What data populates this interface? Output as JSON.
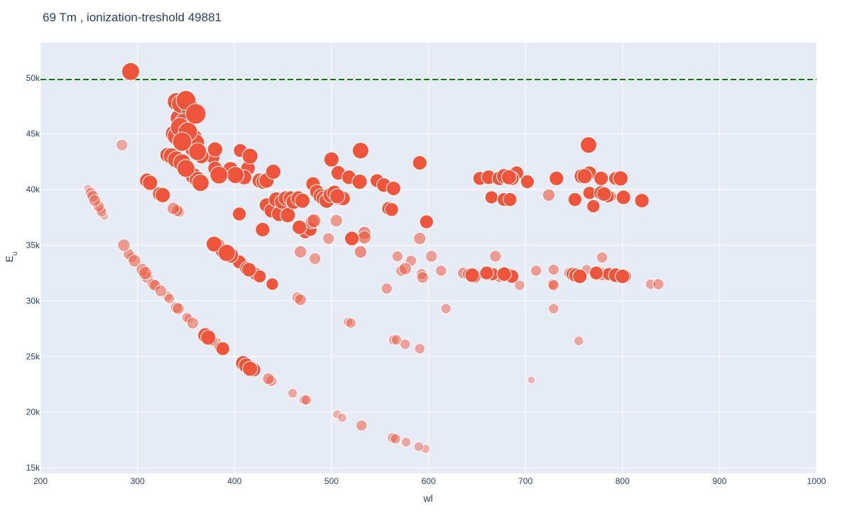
{
  "chart_data": {
    "type": "scatter",
    "title": "69 Tm , ionization-treshold 49881",
    "xlabel": "wl",
    "ylabel": "E",
    "ylabel_sub": "u",
    "xlim": [
      200,
      1000
    ],
    "ylim": [
      14500,
      53200
    ],
    "x_ticks": [
      200,
      300,
      400,
      500,
      600,
      700,
      800,
      900,
      1000
    ],
    "y_ticks": [
      15000,
      20000,
      25000,
      30000,
      35000,
      40000,
      45000,
      50000
    ],
    "x_tick_labels": [
      "200",
      "300",
      "400",
      "500",
      "600",
      "700",
      "800",
      "900",
      "1000"
    ],
    "y_tick_labels": [
      "15k",
      "20k",
      "25k",
      "30k",
      "35k",
      "40k",
      "45k",
      "50k"
    ],
    "threshold": {
      "value": 49881,
      "color": "#008000",
      "style": "dashed"
    },
    "grid": true,
    "colors": {
      "plot_bg": "#e5ecf6",
      "marker": "#ef553b",
      "text": "#2a3f5f",
      "grid": "#ffffff"
    },
    "points": [
      [
        293,
        50600,
        1.0,
        1
      ],
      [
        284,
        44000,
        0.55,
        0.6
      ],
      [
        340,
        47900,
        1.0,
        1
      ],
      [
        345,
        47700,
        1.1,
        1
      ],
      [
        350,
        48000,
        1.15,
        1
      ],
      [
        355,
        47200,
        1.1,
        1
      ],
      [
        360,
        46800,
        1.2,
        1
      ],
      [
        343,
        46400,
        1.0,
        1
      ],
      [
        348,
        46000,
        1.1,
        1
      ],
      [
        338,
        45000,
        1.0,
        1
      ],
      [
        344,
        45600,
        1.1,
        1
      ],
      [
        352,
        45200,
        1.1,
        1
      ],
      [
        358,
        44600,
        1.0,
        1
      ],
      [
        340,
        44800,
        1.0,
        1
      ],
      [
        346,
        44300,
        1.1,
        1
      ],
      [
        354,
        44500,
        1.0,
        1
      ],
      [
        360,
        44200,
        1.0,
        1
      ],
      [
        362,
        43400,
        1.0,
        1
      ],
      [
        357,
        43700,
        0.9,
        1
      ],
      [
        335,
        43000,
        0.9,
        1
      ],
      [
        340,
        42700,
        0.95,
        1
      ],
      [
        346,
        42400,
        1.0,
        1
      ],
      [
        350,
        41900,
        1.0,
        1
      ],
      [
        358,
        41200,
        0.9,
        1
      ],
      [
        362,
        40900,
        0.9,
        1
      ],
      [
        365,
        40600,
        0.95,
        1
      ],
      [
        331,
        43100,
        0.8,
        1
      ],
      [
        366,
        43000,
        0.8,
        1
      ],
      [
        310,
        40800,
        0.8,
        1
      ],
      [
        313,
        40600,
        0.8,
        1
      ],
      [
        323,
        39600,
        0.75,
        1
      ],
      [
        326,
        39500,
        0.8,
        1
      ],
      [
        337,
        38300,
        0.6,
        0.75
      ],
      [
        341,
        38100,
        0.55,
        0.75
      ],
      [
        343,
        38000,
        0.5,
        0.75
      ],
      [
        380,
        43600,
        0.8,
        1
      ],
      [
        378,
        42900,
        0.7,
        1
      ],
      [
        380,
        41900,
        0.75,
        1
      ],
      [
        384,
        41300,
        1.0,
        1
      ],
      [
        396,
        41800,
        0.85,
        1
      ],
      [
        401,
        41300,
        0.95,
        1
      ],
      [
        406,
        43500,
        0.7,
        1
      ],
      [
        410,
        41100,
        0.8,
        1
      ],
      [
        414,
        41900,
        0.75,
        1
      ],
      [
        416,
        43000,
        0.85,
        1
      ],
      [
        426,
        40800,
        0.8,
        1
      ],
      [
        430,
        40700,
        0.8,
        1
      ],
      [
        433,
        40800,
        0.8,
        1
      ],
      [
        440,
        41600,
        0.8,
        1
      ],
      [
        405,
        37800,
        0.7,
        1
      ],
      [
        429,
        36400,
        0.75,
        1
      ],
      [
        433,
        38600,
        0.75,
        1
      ],
      [
        438,
        38100,
        0.75,
        1
      ],
      [
        443,
        39100,
        0.8,
        1
      ],
      [
        446,
        37800,
        0.8,
        1
      ],
      [
        449,
        38900,
        0.8,
        1
      ],
      [
        453,
        39200,
        0.8,
        1
      ],
      [
        455,
        37700,
        0.8,
        1
      ],
      [
        458,
        39200,
        0.8,
        1
      ],
      [
        461,
        38900,
        0.8,
        1
      ],
      [
        466,
        39200,
        0.8,
        1
      ],
      [
        470,
        39000,
        0.8,
        1
      ],
      [
        467,
        36600,
        0.75,
        1
      ],
      [
        473,
        36200,
        0.7,
        1
      ],
      [
        478,
        36400,
        0.7,
        1
      ],
      [
        480,
        37100,
        0.7,
        0.85
      ],
      [
        482,
        37200,
        0.7,
        0.85
      ],
      [
        481,
        40500,
        0.75,
        1
      ],
      [
        485,
        39800,
        0.75,
        1
      ],
      [
        489,
        39400,
        0.8,
        1
      ],
      [
        492,
        39200,
        0.8,
        1
      ],
      [
        495,
        39000,
        0.8,
        1
      ],
      [
        499,
        39500,
        0.8,
        1
      ],
      [
        503,
        39700,
        0.8,
        1
      ],
      [
        506,
        39400,
        0.8,
        1
      ],
      [
        509,
        39200,
        0.75,
        1
      ],
      [
        512,
        39200,
        0.75,
        1
      ],
      [
        500,
        42700,
        0.8,
        1
      ],
      [
        507,
        41500,
        0.75,
        1
      ],
      [
        518,
        41100,
        0.75,
        1
      ],
      [
        529,
        40700,
        0.8,
        1
      ],
      [
        530,
        43500,
        0.9,
        1
      ],
      [
        547,
        40800,
        0.7,
        1
      ],
      [
        554,
        40400,
        0.75,
        1
      ],
      [
        564,
        40100,
        0.75,
        1
      ],
      [
        559,
        38300,
        0.7,
        1
      ],
      [
        562,
        38200,
        0.7,
        1
      ],
      [
        598,
        37100,
        0.7,
        1
      ],
      [
        591,
        42400,
        0.75,
        1
      ],
      [
        521,
        35600,
        0.75,
        1
      ],
      [
        534,
        36100,
        0.65,
        0.85
      ],
      [
        534,
        35700,
        0.65,
        0.85
      ],
      [
        530,
        34400,
        0.6,
        0.85
      ],
      [
        505,
        37200,
        0.6,
        0.75
      ],
      [
        468,
        34400,
        0.6,
        0.75
      ],
      [
        483,
        33800,
        0.55,
        0.7
      ],
      [
        497,
        35600,
        0.55,
        0.7
      ],
      [
        591,
        35600,
        0.6,
        0.75
      ],
      [
        603,
        34000,
        0.55,
        0.7
      ],
      [
        568,
        34000,
        0.5,
        0.7
      ],
      [
        582,
        33600,
        0.5,
        0.7
      ],
      [
        576,
        32900,
        0.6,
        0.75
      ],
      [
        572,
        32700,
        0.5,
        0.7
      ],
      [
        593,
        32400,
        0.5,
        0.7
      ],
      [
        594,
        32100,
        0.55,
        0.7
      ],
      [
        557,
        31100,
        0.5,
        0.7
      ],
      [
        613,
        32700,
        0.5,
        0.7
      ],
      [
        618,
        29300,
        0.45,
        0.65
      ],
      [
        286,
        35000,
        0.6,
        0.75
      ],
      [
        291,
        34200,
        0.5,
        0.7
      ],
      [
        294,
        33900,
        0.45,
        0.65
      ],
      [
        297,
        33600,
        0.6,
        0.75
      ],
      [
        305,
        32800,
        0.6,
        0.75
      ],
      [
        308,
        32500,
        0.65,
        0.75
      ],
      [
        310,
        32100,
        0.55,
        0.7
      ],
      [
        316,
        31500,
        0.55,
        0.7
      ],
      [
        318,
        31400,
        0.55,
        0.7
      ],
      [
        324,
        30900,
        0.55,
        0.7
      ],
      [
        331,
        30400,
        0.45,
        0.6
      ],
      [
        333,
        30200,
        0.45,
        0.6
      ],
      [
        340,
        29400,
        0.55,
        0.7
      ],
      [
        342,
        29300,
        0.55,
        0.7
      ],
      [
        351,
        28500,
        0.45,
        0.6
      ],
      [
        353,
        28400,
        0.4,
        0.6
      ],
      [
        357,
        28000,
        0.55,
        0.7
      ],
      [
        379,
        35100,
        0.85,
        1
      ],
      [
        382,
        35000,
        0.8,
        1
      ],
      [
        388,
        34500,
        0.8,
        1
      ],
      [
        392,
        34300,
        0.95,
        1
      ],
      [
        396,
        34100,
        0.85,
        1
      ],
      [
        405,
        33500,
        0.7,
        1
      ],
      [
        413,
        32900,
        0.75,
        1
      ],
      [
        415,
        32800,
        0.75,
        1
      ],
      [
        422,
        32400,
        0.65,
        1
      ],
      [
        426,
        32200,
        0.65,
        1
      ],
      [
        439,
        31500,
        0.6,
        1
      ],
      [
        370,
        26900,
        0.8,
        1
      ],
      [
        373,
        26700,
        0.8,
        1
      ],
      [
        376,
        26500,
        0.6,
        0.75
      ],
      [
        382,
        26200,
        0.5,
        0.7
      ],
      [
        386,
        25800,
        0.65,
        0.8
      ],
      [
        388,
        25700,
        0.7,
        1
      ],
      [
        409,
        24400,
        0.8,
        1
      ],
      [
        412,
        24200,
        0.8,
        1
      ],
      [
        416,
        23900,
        0.8,
        1
      ],
      [
        420,
        23800,
        0.7,
        1
      ],
      [
        435,
        23000,
        0.55,
        0.75
      ],
      [
        438,
        22800,
        0.5,
        0.7
      ],
      [
        460,
        21700,
        0.4,
        0.6
      ],
      [
        472,
        21100,
        0.45,
        0.65
      ],
      [
        474,
        21100,
        0.45,
        0.65
      ],
      [
        506,
        19800,
        0.35,
        0.55
      ],
      [
        511,
        19500,
        0.35,
        0.55
      ],
      [
        531,
        18800,
        0.5,
        0.7
      ],
      [
        563,
        17700,
        0.45,
        0.65
      ],
      [
        566,
        17600,
        0.45,
        0.65
      ],
      [
        577,
        17300,
        0.4,
        0.6
      ],
      [
        590,
        16900,
        0.4,
        0.6
      ],
      [
        597,
        16700,
        0.35,
        0.55
      ],
      [
        517,
        28100,
        0.4,
        0.6
      ],
      [
        520,
        28000,
        0.45,
        0.65
      ],
      [
        564,
        26500,
        0.45,
        0.65
      ],
      [
        567,
        26500,
        0.45,
        0.65
      ],
      [
        576,
        26100,
        0.45,
        0.65
      ],
      [
        591,
        25700,
        0.45,
        0.65
      ],
      [
        465,
        30300,
        0.5,
        0.7
      ],
      [
        468,
        30100,
        0.55,
        0.75
      ],
      [
        249,
        40100,
        0.3,
        0.5
      ],
      [
        252,
        39700,
        0.5,
        0.7
      ],
      [
        254,
        39400,
        0.55,
        0.7
      ],
      [
        256,
        39000,
        0.55,
        0.7
      ],
      [
        260,
        38500,
        0.5,
        0.7
      ],
      [
        262,
        38200,
        0.45,
        0.6
      ],
      [
        263,
        38000,
        0.45,
        0.6
      ],
      [
        266,
        37600,
        0.3,
        0.5
      ],
      [
        653,
        41000,
        0.7,
        1
      ],
      [
        662,
        41100,
        0.75,
        1
      ],
      [
        673,
        41000,
        0.75,
        1
      ],
      [
        678,
        41200,
        0.8,
        1
      ],
      [
        683,
        41100,
        0.8,
        1
      ],
      [
        686,
        41000,
        0.75,
        1
      ],
      [
        691,
        41500,
        0.7,
        1
      ],
      [
        702,
        40700,
        0.7,
        1
      ],
      [
        665,
        39300,
        0.65,
        1
      ],
      [
        678,
        39100,
        0.7,
        1
      ],
      [
        684,
        39100,
        0.7,
        1
      ],
      [
        724,
        39500,
        0.6,
        0.8
      ],
      [
        732,
        41000,
        0.75,
        1
      ],
      [
        751,
        39100,
        0.7,
        1
      ],
      [
        758,
        41200,
        0.8,
        1
      ],
      [
        761,
        41200,
        0.8,
        1
      ],
      [
        766,
        39700,
        0.65,
        1
      ],
      [
        766,
        41500,
        0.7,
        1
      ],
      [
        765,
        44000,
        0.9,
        1
      ],
      [
        770,
        38500,
        0.65,
        1
      ],
      [
        778,
        41000,
        0.75,
        1
      ],
      [
        778,
        39700,
        0.75,
        1
      ],
      [
        781,
        39600,
        0.75,
        1
      ],
      [
        785,
        39400,
        0.65,
        1
      ],
      [
        787,
        39400,
        0.6,
        1
      ],
      [
        793,
        41000,
        0.7,
        1
      ],
      [
        798,
        41000,
        0.8,
        1
      ],
      [
        801,
        39300,
        0.75,
        1
      ],
      [
        820,
        39000,
        0.75,
        1
      ],
      [
        669,
        34000,
        0.55,
        0.7
      ],
      [
        711,
        32700,
        0.5,
        0.7
      ],
      [
        728,
        31500,
        0.5,
        0.7
      ],
      [
        729,
        31400,
        0.5,
        0.7
      ],
      [
        729,
        32800,
        0.5,
        0.7
      ],
      [
        729,
        29300,
        0.45,
        0.65
      ],
      [
        694,
        31400,
        0.45,
        0.65
      ],
      [
        755,
        26400,
        0.4,
        0.6
      ],
      [
        706,
        22900,
        0.25,
        0.5
      ],
      [
        636,
        32500,
        0.55,
        0.75
      ],
      [
        641,
        32400,
        0.55,
        0.75
      ],
      [
        645,
        32300,
        0.75,
        1
      ],
      [
        647,
        32200,
        0.7,
        1
      ],
      [
        660,
        32500,
        0.7,
        1
      ],
      [
        666,
        32400,
        0.65,
        1
      ],
      [
        673,
        32200,
        0.55,
        0.85
      ],
      [
        678,
        32400,
        0.75,
        1
      ],
      [
        684,
        32300,
        0.7,
        1
      ],
      [
        686,
        32200,
        0.7,
        1
      ],
      [
        745,
        32500,
        0.5,
        0.7
      ],
      [
        749,
        32400,
        0.7,
        1
      ],
      [
        752,
        32300,
        0.75,
        1
      ],
      [
        756,
        32200,
        0.75,
        1
      ],
      [
        763,
        32800,
        0.45,
        0.65
      ],
      [
        773,
        32500,
        0.7,
        1
      ],
      [
        779,
        32400,
        0.65,
        0.85
      ],
      [
        779,
        33900,
        0.5,
        0.7
      ],
      [
        786,
        32400,
        0.65,
        1
      ],
      [
        793,
        32300,
        0.75,
        1
      ],
      [
        800,
        32200,
        0.75,
        1
      ],
      [
        802,
        32200,
        0.7,
        1
      ],
      [
        829,
        31500,
        0.45,
        0.65
      ],
      [
        837,
        31500,
        0.5,
        0.7
      ]
    ]
  }
}
